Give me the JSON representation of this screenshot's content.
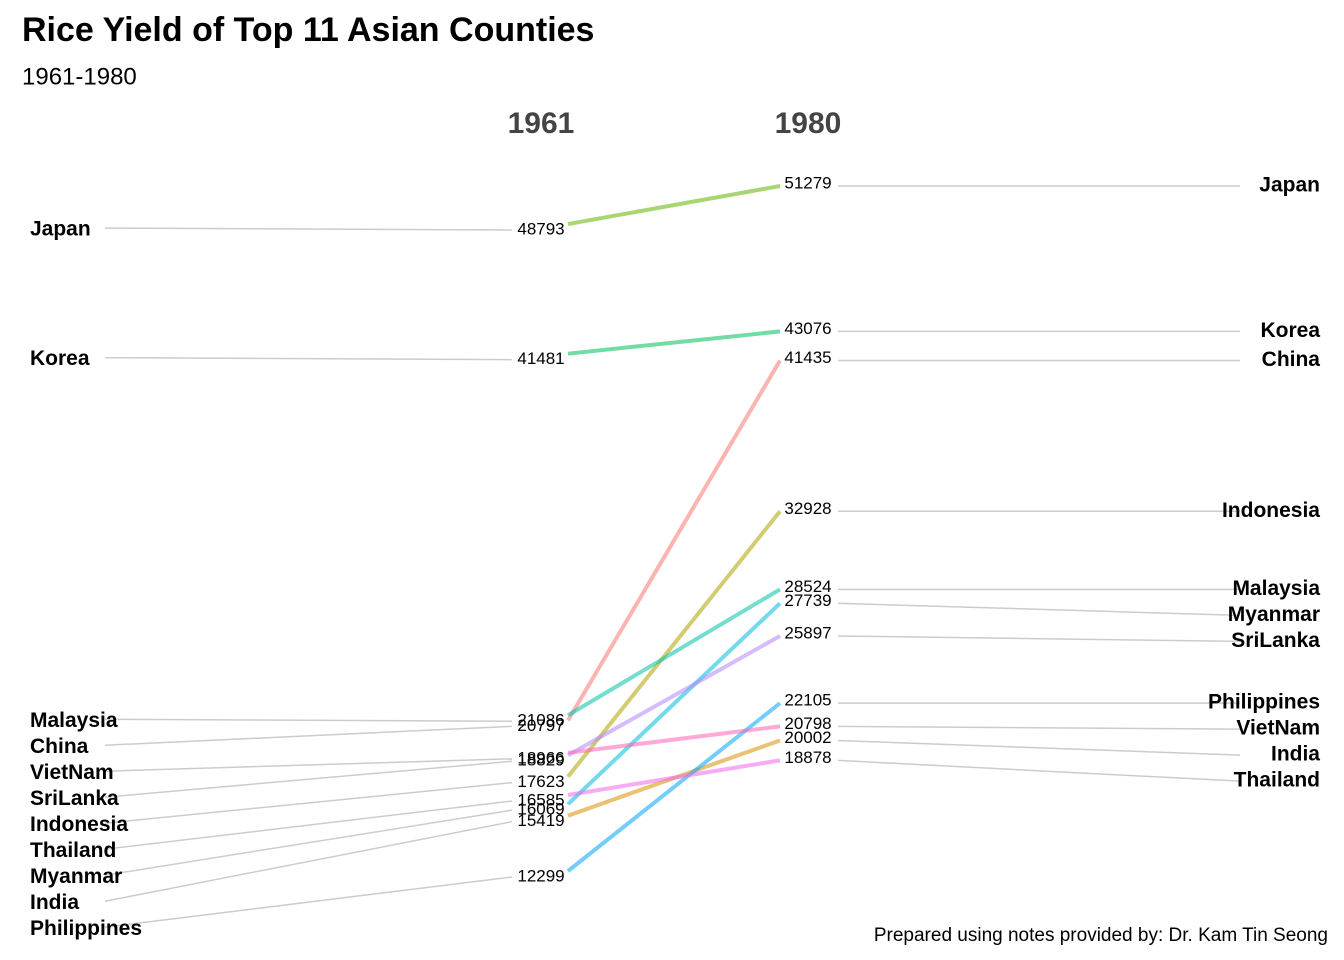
{
  "chart_data": {
    "type": "slope",
    "title": "Rice Yield of Top 11 Asian Counties",
    "subtitle": "1961-1980",
    "caption": "Prepared using notes provided by: Dr. Kam Tin Seong",
    "categories": [
      "1961",
      "1980"
    ],
    "series": [
      {
        "name": "China",
        "color": "#F8766D",
        "values": [
          20797,
          41435
        ]
      },
      {
        "name": "India",
        "color": "#DB8E00",
        "values": [
          15419,
          20002
        ]
      },
      {
        "name": "Indonesia",
        "color": "#AEA200",
        "values": [
          17623,
          32928
        ]
      },
      {
        "name": "Japan",
        "color": "#64B200",
        "values": [
          48793,
          51279
        ]
      },
      {
        "name": "Korea",
        "color": "#00BD5C",
        "values": [
          41481,
          43076
        ]
      },
      {
        "name": "Malaysia",
        "color": "#00C1A7",
        "values": [
          21086,
          28524
        ]
      },
      {
        "name": "Myanmar",
        "color": "#00BADE",
        "values": [
          16069,
          27739
        ]
      },
      {
        "name": "Philippines",
        "color": "#00A6FF",
        "values": [
          12299,
          22105
        ]
      },
      {
        "name": "SriLanka",
        "color": "#B385FF",
        "values": [
          18829,
          25897
        ]
      },
      {
        "name": "Thailand",
        "color": "#EF67EB",
        "values": [
          16585,
          18878
        ]
      },
      {
        "name": "VietNam",
        "color": "#FF63B6",
        "values": [
          18966,
          20798
        ]
      }
    ]
  }
}
